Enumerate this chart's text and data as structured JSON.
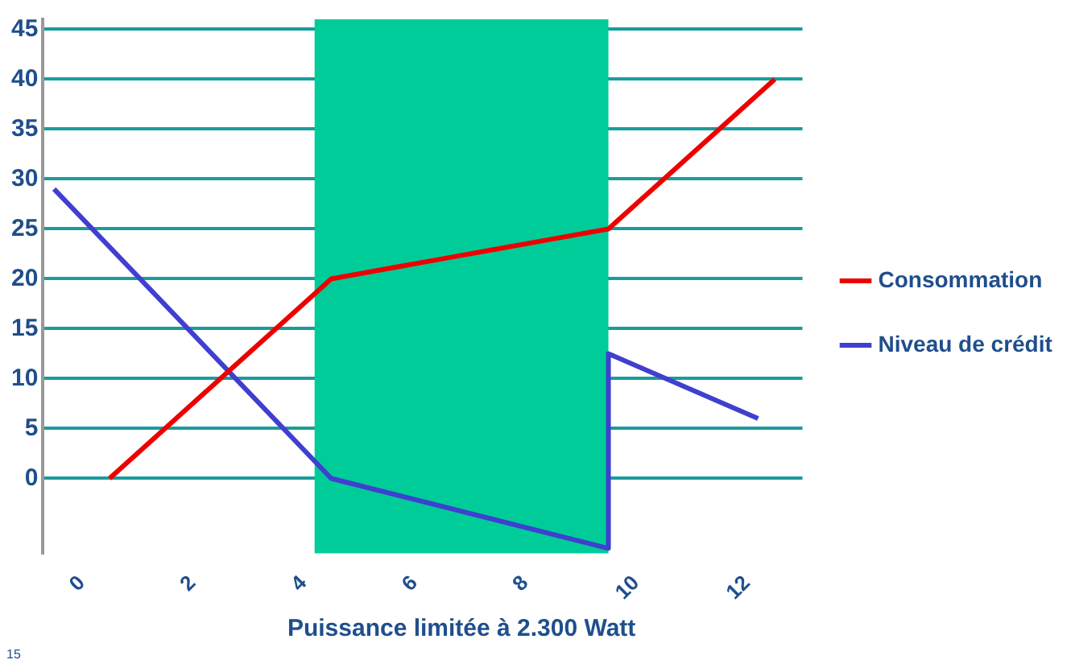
{
  "chart_data": {
    "type": "line",
    "series": [
      {
        "name": "Consommation",
        "color": "#ee0000",
        "x": [
          0.5,
          1.5,
          2.5,
          3.5,
          4.5,
          5.5,
          6.5,
          7.5,
          8.5,
          9.5,
          10.5,
          11.5,
          12.5
        ],
        "values": [
          0,
          5,
          10,
          15,
          20,
          21,
          22,
          23,
          24,
          25,
          30,
          35,
          40
        ]
      },
      {
        "name": "Niveau de crédit",
        "color": "#3f3fd0",
        "x": [
          -0.5,
          4.5,
          9.5,
          9.5,
          12.2
        ],
        "values": [
          29,
          0,
          -7,
          12.5,
          6
        ]
      }
    ],
    "xlim": [
      -0.7,
      13
    ],
    "xticks": [
      0,
      2,
      4,
      6,
      8,
      10,
      12
    ],
    "ylim": [
      -7.5,
      46
    ],
    "yticks": [
      0,
      5,
      10,
      15,
      20,
      25,
      30,
      35,
      40,
      45
    ],
    "bands": [
      {
        "axis": "x",
        "from": 4.2,
        "to": 9.5,
        "label": "Puissance limitée à 2.300 Watt",
        "color": "#00cc99"
      }
    ],
    "annotations": [
      "15"
    ],
    "grid": "y",
    "legend": "right",
    "marker": "none",
    "line_style": "solid"
  }
}
